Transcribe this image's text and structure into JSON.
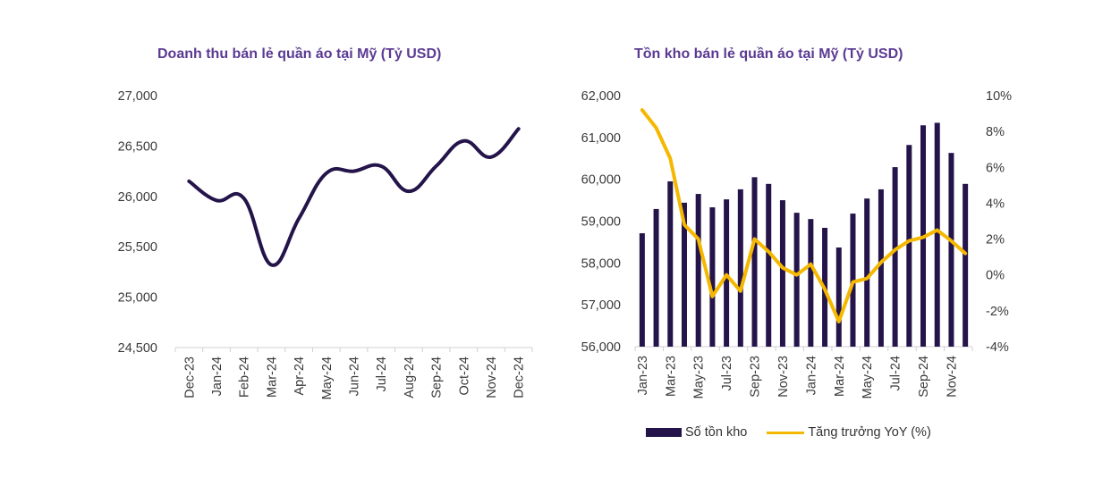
{
  "colors": {
    "title": "#5b3a93",
    "line_dark": "#24144a",
    "bar": "#24144a",
    "yoy_line": "#f5b800",
    "axis": "#d0d0d0",
    "tick_text": "#3a3a3a"
  },
  "chart_data": [
    {
      "type": "line",
      "title": "Doanh thu bán lẻ quần áo tại Mỹ (Tỷ USD)",
      "xlabel": "",
      "ylabel": "",
      "categories": [
        "Dec-23",
        "Jan-24",
        "Feb-24",
        "Mar-24",
        "Apr-24",
        "May-24",
        "Jun-24",
        "Jul-24",
        "Aug-24",
        "Sep-24",
        "Oct-24",
        "Nov-24",
        "Dec-24"
      ],
      "series": [
        {
          "name": "Doanh thu",
          "values": [
            26150,
            25960,
            25980,
            25320,
            25780,
            26230,
            26250,
            26300,
            26050,
            26300,
            26550,
            26390,
            26670
          ]
        }
      ],
      "ylim": [
        24500,
        27000
      ],
      "yticks": [
        24500,
        25000,
        25500,
        26000,
        26500,
        27000
      ],
      "ytick_labels": [
        "24,500",
        "25,000",
        "25,500",
        "26,000",
        "26,500",
        "27,000"
      ],
      "smooth": true,
      "grid": false,
      "legend": "none"
    },
    {
      "type": "bar",
      "title": "Tồn kho bán lẻ quần áo tại Mỹ (Tỷ USD)",
      "xlabel": "",
      "ylabel": "",
      "categories": [
        "Jan-23",
        "Feb-23",
        "Mar-23",
        "Apr-23",
        "May-23",
        "Jun-23",
        "Jul-23",
        "Aug-23",
        "Sep-23",
        "Oct-23",
        "Nov-23",
        "Dec-23",
        "Jan-24",
        "Feb-24",
        "Mar-24",
        "Apr-24",
        "May-24",
        "Jun-24",
        "Jul-24",
        "Aug-24",
        "Sep-24",
        "Oct-24",
        "Nov-24",
        "Dec-24"
      ],
      "xtick_labels": [
        "Jan-23",
        "Mar-23",
        "May-23",
        "Jul-23",
        "Sep-23",
        "Nov-23",
        "Jan-24",
        "Mar-24",
        "May-24",
        "Jul-24",
        "Sep-24",
        "Nov-24"
      ],
      "series": [
        {
          "name": "Số tồn kho",
          "type": "bar",
          "axis": "left",
          "values": [
            58710,
            59290,
            59950,
            59440,
            59650,
            59330,
            59520,
            59760,
            60050,
            59890,
            59500,
            59200,
            59050,
            58840,
            58370,
            59180,
            59540,
            59760,
            60290,
            60820,
            61290,
            61350,
            60630,
            59890
          ]
        },
        {
          "name": "Tăng trưởng YoY (%)",
          "type": "line",
          "axis": "right",
          "values": [
            9.2,
            8.2,
            6.5,
            2.8,
            2.0,
            -1.2,
            0.0,
            -0.9,
            2.0,
            1.3,
            0.4,
            0.0,
            0.6,
            -0.8,
            -2.6,
            -0.4,
            -0.2,
            0.7,
            1.4,
            1.9,
            2.1,
            2.5,
            1.9,
            1.2
          ]
        }
      ],
      "ylim": [
        56000,
        62000
      ],
      "yticks": [
        56000,
        57000,
        58000,
        59000,
        60000,
        61000,
        62000
      ],
      "ytick_labels": [
        "56,000",
        "57,000",
        "58,000",
        "59,000",
        "60,000",
        "61,000",
        "62,000"
      ],
      "y2lim": [
        -4,
        10
      ],
      "y2ticks": [
        -4,
        -2,
        0,
        2,
        4,
        6,
        8,
        10
      ],
      "y2tick_labels": [
        "-4%",
        "-2%",
        "0%",
        "2%",
        "4%",
        "6%",
        "8%",
        "10%"
      ],
      "grid": false,
      "legend": "bottom"
    }
  ],
  "legend": {
    "bar_label": "Số tồn kho",
    "line_label": "Tăng trưởng YoY (%)"
  }
}
